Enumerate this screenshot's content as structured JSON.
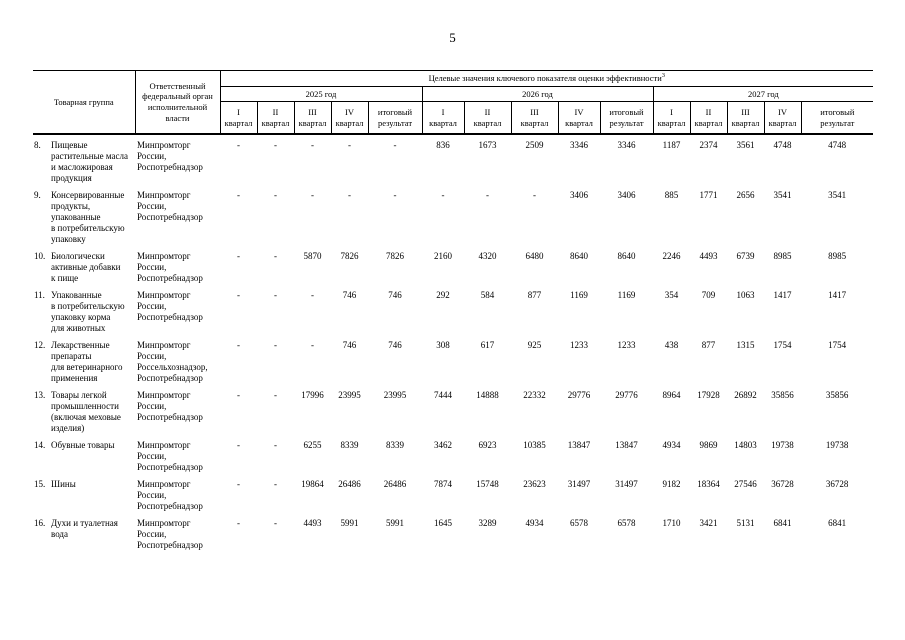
{
  "page": {
    "number": "5"
  },
  "table": {
    "header": {
      "col_group": "Товарная группа",
      "col_authority": "Ответственный\nфедеральный орган\nисполнительной\nвласти",
      "title": "Целевые значения ключевого показателя оценки эффективности",
      "title_footnote_ref": "3",
      "years": [
        "2025 год",
        "2026 год",
        "2027 год"
      ],
      "quarter_cols": [
        "I\nквартал",
        "II\nквартал",
        "III\nквартал",
        "IV\nквартал",
        "итоговый\nрезультат"
      ]
    },
    "rows": [
      {
        "num": "8.",
        "group": "Пищевые\nрастительные масла\nи масложировая\nпродукция",
        "authority": "Минпромторг\nРоссии,\nРоспотребнадзор",
        "values": [
          "-",
          "-",
          "-",
          "-",
          "-",
          "836",
          "1673",
          "2509",
          "3346",
          "3346",
          "1187",
          "2374",
          "3561",
          "4748",
          "4748"
        ]
      },
      {
        "num": "9.",
        "group": "Консервированные\nпродукты,\nупакованные\nв потребительскую\nупаковку",
        "authority": "Минпромторг\nРоссии,\nРоспотребнадзор",
        "values": [
          "-",
          "-",
          "-",
          "-",
          "-",
          "-",
          "-",
          "-",
          "3406",
          "3406",
          "885",
          "1771",
          "2656",
          "3541",
          "3541"
        ]
      },
      {
        "num": "10.",
        "group": "Биологически\nактивные добавки\nк пище",
        "authority": "Минпромторг\nРоссии,\nРоспотребнадзор",
        "values": [
          "-",
          "-",
          "5870",
          "7826",
          "7826",
          "2160",
          "4320",
          "6480",
          "8640",
          "8640",
          "2246",
          "4493",
          "6739",
          "8985",
          "8985"
        ]
      },
      {
        "num": "11.",
        "group": "Упакованные\nв потребительскую\nупаковку корма\nдля животных",
        "authority": "Минпромторг\nРоссии,\nРоспотребнадзор",
        "values": [
          "-",
          "-",
          "-",
          "746",
          "746",
          "292",
          "584",
          "877",
          "1169",
          "1169",
          "354",
          "709",
          "1063",
          "1417",
          "1417"
        ]
      },
      {
        "num": "12.",
        "group": "Лекарственные\nпрепараты\nдля ветеринарного\nприменения",
        "authority": "Минпромторг\nРоссии,\nРоссельхознадзор,\nРоспотребнадзор",
        "values": [
          "-",
          "-",
          "-",
          "746",
          "746",
          "308",
          "617",
          "925",
          "1233",
          "1233",
          "438",
          "877",
          "1315",
          "1754",
          "1754"
        ]
      },
      {
        "num": "13.",
        "group": "Товары легкой\nпромышленности\n(включая меховые\nизделия)",
        "authority": "Минпромторг\nРоссии,\nРоспотребнадзор",
        "values": [
          "-",
          "-",
          "17996",
          "23995",
          "23995",
          "7444",
          "14888",
          "22332",
          "29776",
          "29776",
          "8964",
          "17928",
          "26892",
          "35856",
          "35856"
        ]
      },
      {
        "num": "14.",
        "group": "Обувные товары",
        "authority": "Минпромторг\nРоссии,\nРоспотребнадзор",
        "values": [
          "-",
          "-",
          "6255",
          "8339",
          "8339",
          "3462",
          "6923",
          "10385",
          "13847",
          "13847",
          "4934",
          "9869",
          "14803",
          "19738",
          "19738"
        ]
      },
      {
        "num": "15.",
        "group": "Шины",
        "authority": "Минпромторг\nРоссии,\nРоспотребнадзор",
        "values": [
          "-",
          "-",
          "19864",
          "26486",
          "26486",
          "7874",
          "15748",
          "23623",
          "31497",
          "31497",
          "9182",
          "18364",
          "27546",
          "36728",
          "36728"
        ]
      },
      {
        "num": "16.",
        "group": "Духи и туалетная\nвода",
        "authority": "Минпромторг\nРоссии,\nРоспотребнадзор",
        "values": [
          "-",
          "-",
          "4493",
          "5991",
          "5991",
          "1645",
          "3289",
          "4934",
          "6578",
          "6578",
          "1710",
          "3421",
          "5131",
          "6841",
          "6841"
        ]
      }
    ]
  }
}
